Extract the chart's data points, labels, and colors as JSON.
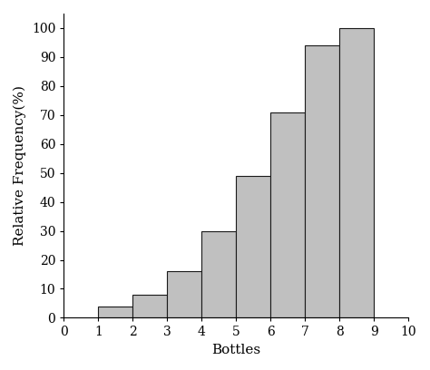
{
  "categories": [
    1,
    2,
    3,
    4,
    5,
    6,
    7,
    8
  ],
  "bar_centers": [
    1.5,
    2.5,
    3.5,
    4.5,
    5.5,
    6.5,
    7.5,
    8.5
  ],
  "values": [
    4,
    8,
    16,
    30,
    49,
    71,
    94,
    100
  ],
  "bar_color": "#c0c0c0",
  "bar_edge_color": "#1a1a1a",
  "bar_edge_width": 0.8,
  "xlabel": "Bottles",
  "ylabel": "Relative Frequency(%)",
  "xlim": [
    0,
    10
  ],
  "ylim": [
    0,
    105
  ],
  "xticks": [
    0,
    1,
    2,
    3,
    4,
    5,
    6,
    7,
    8,
    9,
    10
  ],
  "yticks": [
    0,
    10,
    20,
    30,
    40,
    50,
    60,
    70,
    80,
    90,
    100
  ],
  "bar_width": 1.0,
  "background_color": "#ffffff",
  "tick_fontsize": 10,
  "label_fontsize": 11
}
